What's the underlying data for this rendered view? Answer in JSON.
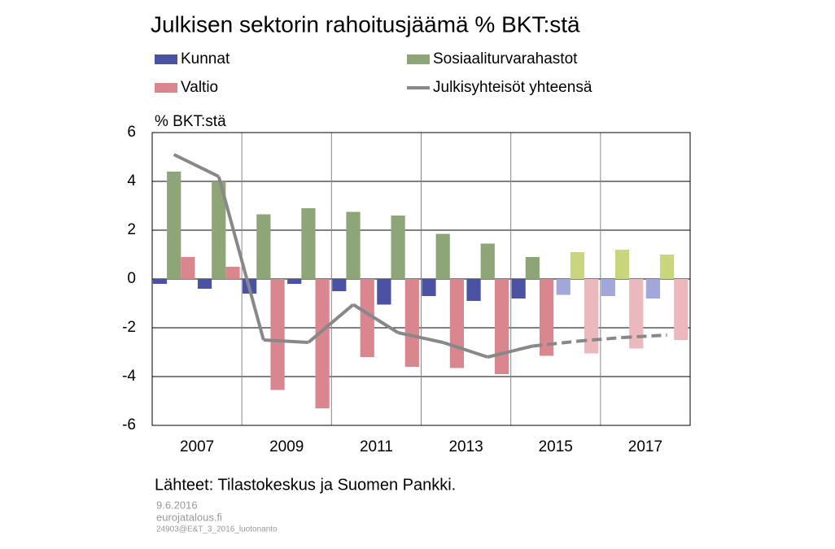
{
  "chart_data": {
    "type": "bar",
    "title": "Julkisen sektorin rahoitusjäämä % BKT:stä",
    "y_label": "% BKT:stä",
    "source": "Lähteet: Tilastokeskus ja Suomen Pankki.",
    "footer": [
      "9.6.2016",
      "eurojatalous.fi",
      "24903@E&T_3_2016_luotonanto"
    ],
    "categories": [
      "2007",
      null,
      "2009",
      null,
      "2011",
      null,
      "2013",
      null,
      "2015",
      null,
      "2017",
      null
    ],
    "ylim": [
      -6,
      6
    ],
    "yticks": [
      -6,
      -4,
      -2,
      0,
      2,
      4,
      6
    ],
    "grid": true,
    "series": [
      {
        "name": "Kunnat",
        "type": "bar",
        "color": "#4b52a3",
        "colors": [
          "#4b52a3",
          "#4b52a3",
          "#4b52a3",
          "#4b52a3",
          "#4b52a3",
          "#4b52a3",
          "#4b52a3",
          "#4b52a3",
          "#4b52a3",
          "#a3a6d8",
          "#a3a6d8",
          "#a3a6d8"
        ],
        "values": [
          -0.2,
          -0.4,
          -0.6,
          -0.2,
          -0.5,
          -1.05,
          -0.7,
          -0.9,
          -0.8,
          -0.65,
          -0.7,
          -0.8
        ]
      },
      {
        "name": "Sosiaaliturvarahastot",
        "type": "bar",
        "color": "#8ea577",
        "colors": [
          "#8ea577",
          "#8ea577",
          "#8ea577",
          "#8ea577",
          "#8ea577",
          "#8ea577",
          "#8ea577",
          "#8ea577",
          "#8ea577",
          "#c9d67d",
          "#c9d67d",
          "#c9d67d"
        ],
        "values": [
          4.4,
          4.0,
          2.65,
          2.9,
          2.75,
          2.6,
          1.85,
          1.45,
          0.9,
          1.1,
          1.2,
          1.0
        ]
      },
      {
        "name": "Valtio",
        "type": "bar",
        "color": "#d9868e",
        "colors": [
          "#d9868e",
          "#d9868e",
          "#d9868e",
          "#d9868e",
          "#d9868e",
          "#d9868e",
          "#d9868e",
          "#d9868e",
          "#d9868e",
          "#ebb9bd",
          "#ebb9bd",
          "#ebb9bd"
        ],
        "values": [
          0.9,
          0.5,
          -4.55,
          -5.3,
          -3.2,
          -3.6,
          -3.65,
          -3.9,
          -3.15,
          -3.05,
          -2.85,
          -2.5
        ]
      },
      {
        "name": "Julkisyhteisöt yhteensä",
        "type": "line",
        "color": "#888888",
        "line_styles": [
          "solid",
          "solid",
          "solid",
          "solid",
          "solid",
          "solid",
          "solid",
          "solid",
          "solid",
          "dashed",
          "dashed",
          "dashed"
        ],
        "values": [
          5.1,
          4.2,
          -2.5,
          -2.6,
          -1.05,
          -2.2,
          -2.6,
          -3.2,
          -2.75,
          -2.55,
          -2.4,
          -2.3
        ]
      }
    ]
  }
}
